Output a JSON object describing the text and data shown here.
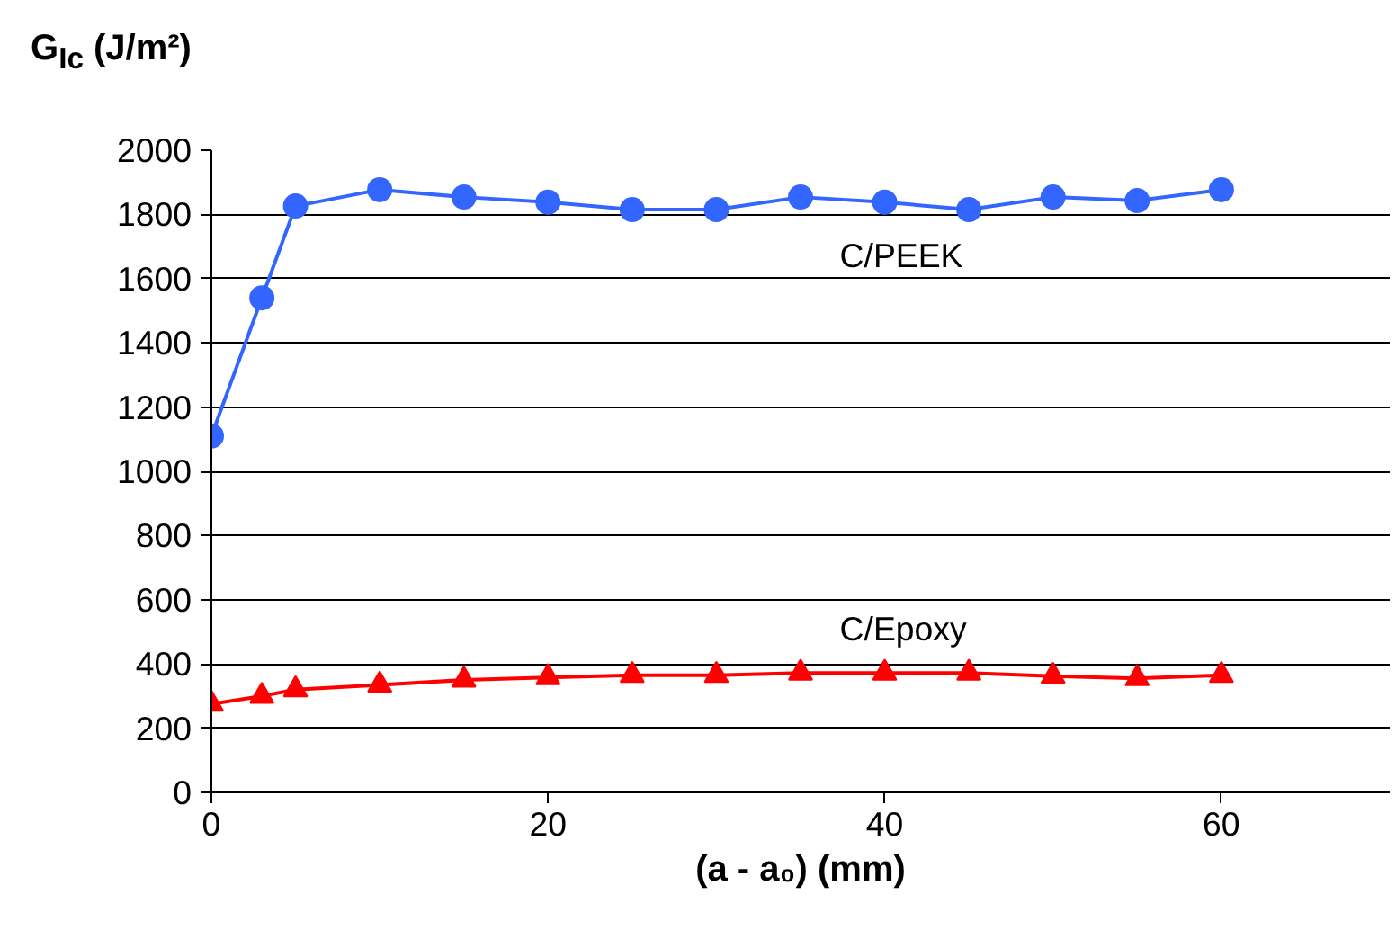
{
  "chart_data": {
    "type": "line",
    "ylabel": "G$_{Ic}$ (J/m²)",
    "xlabel": "(a - a₀) (mm)",
    "xlim": [
      0,
      70
    ],
    "xticks": [
      0,
      20,
      40,
      60
    ],
    "ylim": [
      0,
      2000
    ],
    "yticks": [
      0,
      200,
      400,
      600,
      800,
      1000,
      1200,
      1400,
      1600,
      1800,
      2000
    ],
    "grid": "y",
    "line_style": "solid",
    "series": [
      {
        "name": "C/PEEK",
        "color": "#3366ff",
        "marker": "circle",
        "x": [
          0,
          3,
          5,
          10,
          15,
          20,
          25,
          30,
          35,
          40,
          45,
          50,
          55,
          60
        ],
        "values": [
          1110,
          1540,
          1826,
          1877,
          1854,
          1838,
          1815,
          1815,
          1854,
          1838,
          1815,
          1854,
          1843,
          1877
        ]
      },
      {
        "name": "C/Epoxy",
        "color": "#ff0000",
        "marker": "triangle",
        "x": [
          0,
          3,
          5,
          10,
          15,
          20,
          25,
          30,
          35,
          40,
          45,
          50,
          55,
          60
        ],
        "values": [
          275,
          300,
          320,
          335,
          350,
          358,
          365,
          365,
          372,
          372,
          372,
          362,
          355,
          365
        ]
      }
    ]
  }
}
